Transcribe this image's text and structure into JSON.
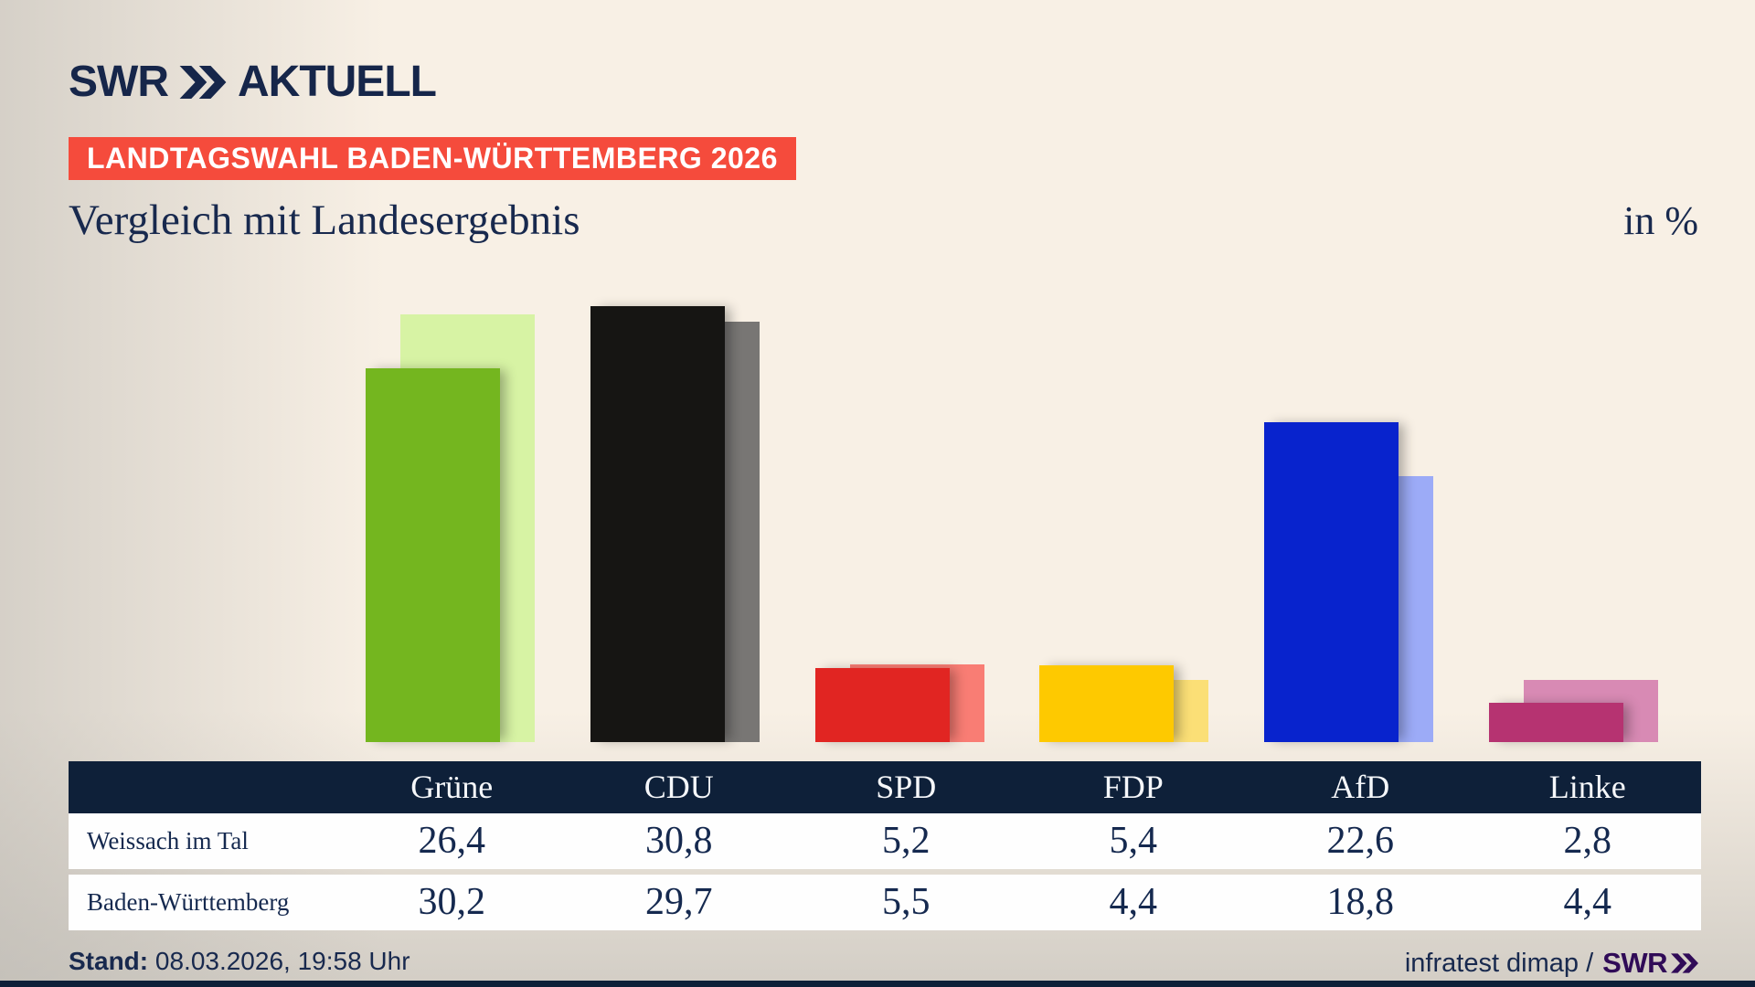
{
  "brand": {
    "logo_text": "SWR",
    "logo_suffix": "AKTUELL"
  },
  "banner": {
    "text": "LANDTAGSWAHL BADEN-WÜRTTEMBERG 2026",
    "bg_color": "#f54b3c"
  },
  "title": "Vergleich mit Landesergebnis",
  "unit_label": "in %",
  "chart_data": {
    "type": "bar",
    "title": "Vergleich mit Landesergebnis",
    "unit": "in %",
    "categories": [
      "Grüne",
      "CDU",
      "SPD",
      "FDP",
      "AfD",
      "Linke"
    ],
    "series": [
      {
        "name": "Weissach im Tal",
        "role": "front",
        "values": [
          26.4,
          30.8,
          5.2,
          5.4,
          22.6,
          2.8
        ],
        "colors": [
          "#74b61f",
          "#161513",
          "#e12522",
          "#fec900",
          "#0823cd",
          "#b63371"
        ]
      },
      {
        "name": "Baden-Württemberg",
        "role": "back",
        "values": [
          30.2,
          29.7,
          5.5,
          4.4,
          18.8,
          4.4
        ],
        "colors": [
          "#d7f3a4",
          "#787674",
          "#f97d74",
          "#fbdf76",
          "#9cabf7",
          "#d88ab4"
        ]
      }
    ],
    "ylim": [
      0,
      32
    ],
    "grid": false,
    "legend_position": "table below chart",
    "layout_hint": "paired bars, back bar offset right, bottom aligned, no axes"
  },
  "table": {
    "header_bg": "#0e2039",
    "columns": [
      "Grüne",
      "CDU",
      "SPD",
      "FDP",
      "AfD",
      "Linke"
    ],
    "rows": [
      {
        "label": "Weissach im Tal",
        "values": [
          "26,4",
          "30,8",
          "5,2",
          "5,4",
          "22,6",
          "2,8"
        ]
      },
      {
        "label": "Baden-Württemberg",
        "values": [
          "30,2",
          "29,7",
          "5,5",
          "4,4",
          "18,8",
          "4,4"
        ]
      }
    ]
  },
  "footer": {
    "stand_label": "Stand:",
    "stand_value": "08.03.2026, 19:58 Uhr",
    "source_text": "infratest dimap /",
    "source_brand": "SWR"
  },
  "colors": {
    "background": "#f8f0e5",
    "navy": "#0e2039",
    "text_navy": "#18294e",
    "banner_red": "#f54b3c",
    "brand_purple": "#300b57"
  }
}
